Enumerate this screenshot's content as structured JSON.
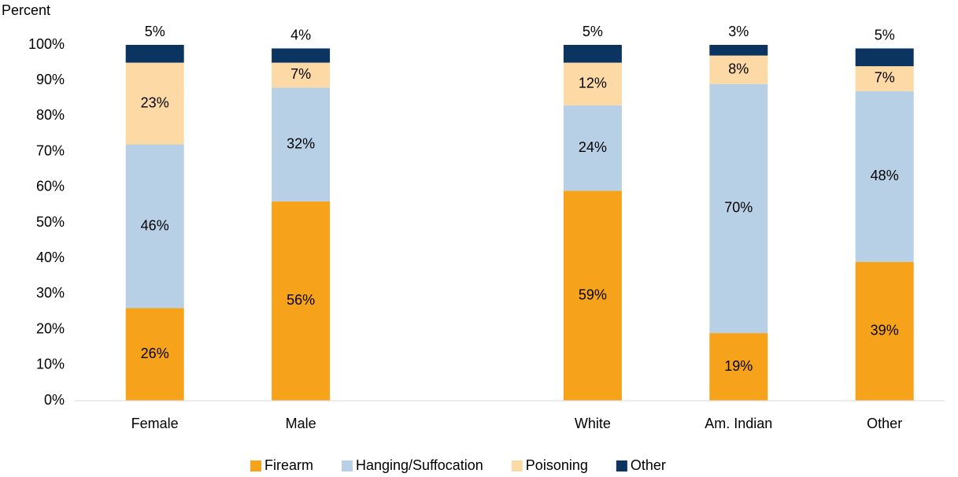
{
  "chart_data": {
    "type": "stacked_bar",
    "y_label": "Percent",
    "categories": [
      "Female",
      "Male",
      null,
      "White",
      "Am. Indian",
      "Other"
    ],
    "series": [
      {
        "name": "Firearm",
        "color": "#f7a21b",
        "values": [
          26,
          56,
          null,
          59,
          19,
          39
        ],
        "value_labels": [
          "26%",
          "56%",
          null,
          "59%",
          "19%",
          "39%"
        ]
      },
      {
        "name": "Hanging/Suffocation",
        "color": "#b8d0e6",
        "values": [
          46,
          32,
          null,
          24,
          70,
          48
        ],
        "value_labels": [
          "46%",
          "32%",
          null,
          "24%",
          "70%",
          "48%"
        ]
      },
      {
        "name": "Poisoning",
        "color": "#fdd9a5",
        "values": [
          23,
          7,
          null,
          12,
          8,
          7
        ],
        "value_labels": [
          "23%",
          "7%",
          null,
          "12%",
          "8%",
          "7%"
        ]
      },
      {
        "name": "Other",
        "color": "#0b3461",
        "values": [
          5,
          4,
          null,
          5,
          3,
          5
        ],
        "value_labels": [
          "5%",
          "4%",
          null,
          "5%",
          "3%",
          "5%"
        ]
      }
    ],
    "ylim": [
      0,
      100
    ],
    "yticks": [
      {
        "value": 0,
        "label": "0%"
      },
      {
        "value": 10,
        "label": "10%"
      },
      {
        "value": 20,
        "label": "20%"
      },
      {
        "value": 30,
        "label": "30%"
      },
      {
        "value": 40,
        "label": "40%"
      },
      {
        "value": 50,
        "label": "50%"
      },
      {
        "value": 60,
        "label": "60%"
      },
      {
        "value": 70,
        "label": "70%"
      },
      {
        "value": 80,
        "label": "80%"
      },
      {
        "value": 90,
        "label": "90%"
      },
      {
        "value": 100,
        "label": "100%"
      }
    ],
    "grid": false,
    "legend": "bottom"
  }
}
